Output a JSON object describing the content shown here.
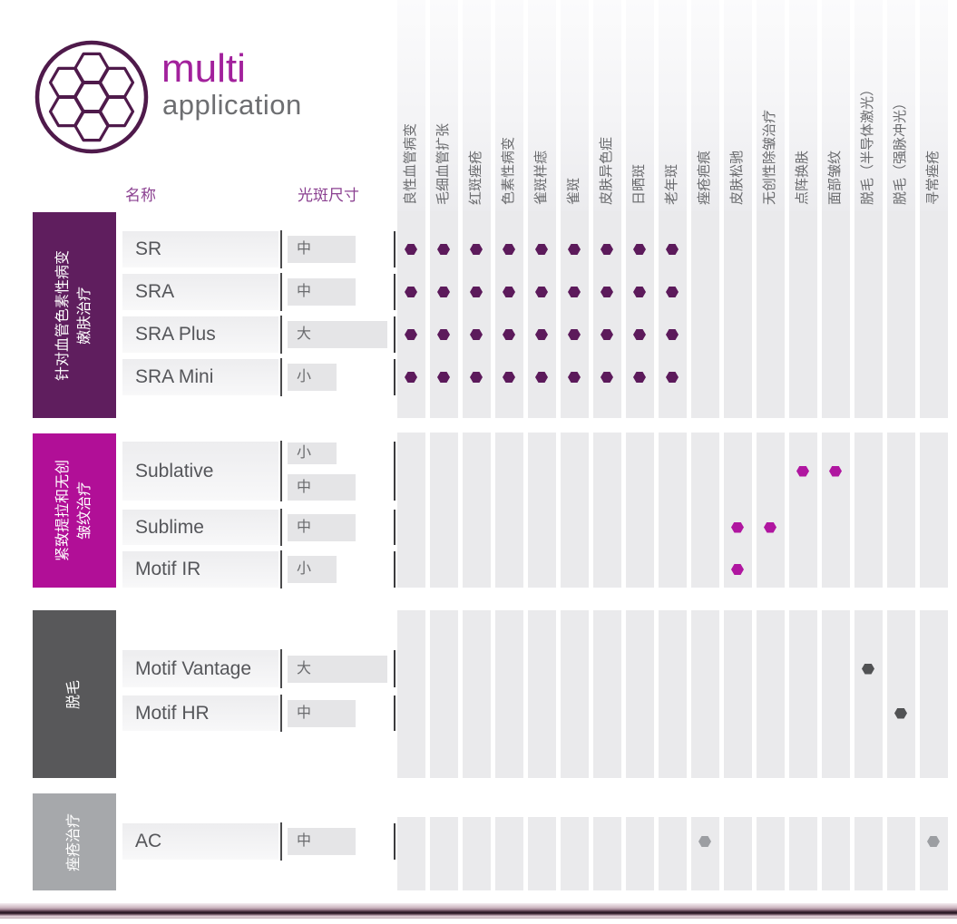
{
  "brand": {
    "title": "multi",
    "subtitle": "application",
    "title_color": "#a2219c",
    "subtitle_color": "#6d6e71",
    "logo_icon": "honeycomb-icon",
    "logo_color": "#4f1a4b"
  },
  "headers": {
    "name": "名称",
    "spot_size": "光斑尺寸",
    "header_color": "#8b4191"
  },
  "chart_data": {
    "type": "table",
    "title": "multi application",
    "columns": [
      "良性血管病变",
      "毛细血管扩张",
      "红斑痤疮",
      "色素性病变",
      "雀斑样痣",
      "雀斑",
      "皮肤异色症",
      "日晒斑",
      "老年斑",
      "痤疮疤痕",
      "皮肤松驰",
      "无创性除皱治疗",
      "点阵换肤",
      "面部皱纹",
      "脱毛（半导体激光）",
      "脱毛（强脉冲光）",
      "寻常痤疮"
    ],
    "spot_size_values": [
      "小",
      "中",
      "大"
    ],
    "groups": [
      {
        "label_lines": [
          "针对血管色素性病变",
          "嫩肤治疗"
        ],
        "color": "#5f1e5e",
        "dot_color": "#5c1a5b",
        "rows": [
          {
            "name": "SR",
            "spot_sizes": [
              "中"
            ],
            "marked_columns": [
              1,
              2,
              3,
              4,
              5,
              6,
              7,
              8,
              9
            ]
          },
          {
            "name": "SRA",
            "spot_sizes": [
              "中"
            ],
            "marked_columns": [
              1,
              2,
              3,
              4,
              5,
              6,
              7,
              8,
              9
            ]
          },
          {
            "name": "SRA Plus",
            "spot_sizes": [
              "大"
            ],
            "marked_columns": [
              1,
              2,
              3,
              4,
              5,
              6,
              7,
              8,
              9
            ]
          },
          {
            "name": "SRA Mini",
            "spot_sizes": [
              "小"
            ],
            "marked_columns": [
              1,
              2,
              3,
              4,
              5,
              6,
              7,
              8,
              9
            ]
          }
        ]
      },
      {
        "label_lines": [
          "紧致提拉和无创",
          "皱纹治疗"
        ],
        "color": "#b10f97",
        "dot_color": "#b016a0",
        "rows": [
          {
            "name": "Sublative",
            "spot_sizes": [
              "小",
              "中"
            ],
            "marked_columns": [
              13,
              14
            ]
          },
          {
            "name": "Sublime",
            "spot_sizes": [
              "中"
            ],
            "marked_columns": [
              11,
              12
            ]
          },
          {
            "name": "Motif IR",
            "spot_sizes": [
              "小"
            ],
            "marked_columns": [
              11
            ]
          }
        ]
      },
      {
        "label_lines": [
          "脱毛"
        ],
        "color": "#58585a",
        "dot_color": "#515254",
        "rows": [
          {
            "name": "Motif Vantage",
            "spot_sizes": [
              "大"
            ],
            "marked_columns": [
              15
            ]
          },
          {
            "name": "Motif HR",
            "spot_sizes": [
              "中"
            ],
            "marked_columns": [
              16
            ]
          }
        ]
      },
      {
        "label_lines": [
          "痤疮治疗"
        ],
        "color": "#a6a8ab",
        "dot_color": "#9c9ea2",
        "rows": [
          {
            "name": "AC",
            "spot_sizes": [
              "中"
            ],
            "marked_columns": [
              10,
              17
            ]
          }
        ]
      }
    ]
  }
}
